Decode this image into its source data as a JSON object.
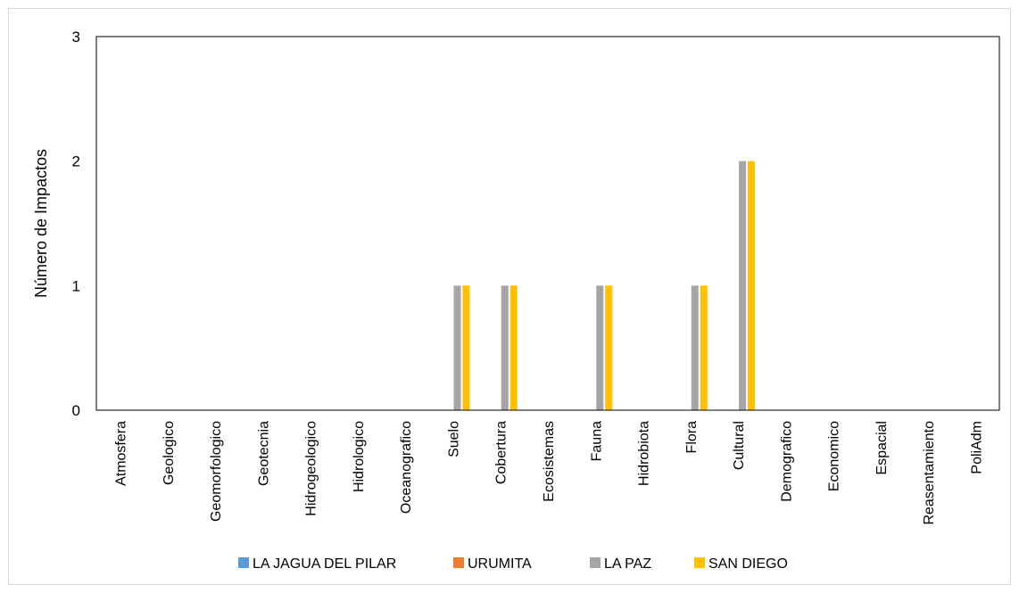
{
  "chart_data": {
    "type": "bar",
    "title": "",
    "xlabel": "",
    "ylabel": "Número de Impactos",
    "ylim": [
      0,
      3
    ],
    "yticks": [
      "0",
      "1",
      "2",
      "3"
    ],
    "grid": false,
    "legend_position": "bottom",
    "categories": [
      "Atmosfera",
      "Geologico",
      "Geomorfologico",
      "Geotecnia",
      "Hidrogeologico",
      "Hidrologico",
      "Oceanografico",
      "Suelo",
      "Cobertura",
      "Ecosistemas",
      "Fauna",
      "Hidrobiota",
      "Flora",
      "Cultural",
      "Demografico",
      "Economico",
      "Espacial",
      "Reasentamiento",
      "PoliAdm"
    ],
    "series": [
      {
        "name": "LA JAGUA DEL PILAR",
        "color": "#5b9bd5",
        "values": [
          0,
          0,
          0,
          0,
          0,
          0,
          0,
          0,
          0,
          0,
          0,
          0,
          0,
          0,
          0,
          0,
          0,
          0,
          0
        ]
      },
      {
        "name": "URUMITA",
        "color": "#ed7d31",
        "values": [
          0,
          0,
          0,
          0,
          0,
          0,
          0,
          0,
          0,
          0,
          0,
          0,
          0,
          0,
          0,
          0,
          0,
          0,
          0
        ]
      },
      {
        "name": "LA PAZ",
        "color": "#a5a5a5",
        "values": [
          0,
          0,
          0,
          0,
          0,
          0,
          0,
          1,
          1,
          0,
          1,
          0,
          1,
          2,
          0,
          0,
          0,
          0,
          0
        ]
      },
      {
        "name": "SAN DIEGO",
        "color": "#ffc000",
        "values": [
          0,
          0,
          0,
          0,
          0,
          0,
          0,
          1,
          1,
          0,
          1,
          0,
          1,
          2,
          0,
          0,
          0,
          0,
          0
        ]
      }
    ]
  }
}
